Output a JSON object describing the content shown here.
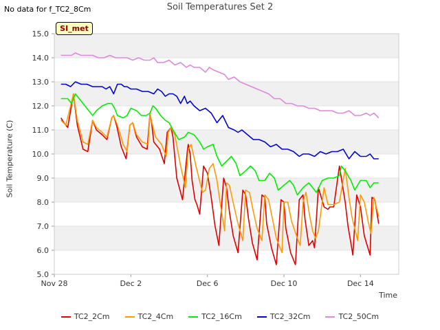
{
  "header": {
    "no_data_text": "No data for f_TC2_8Cm",
    "title": "Soil Temperatures Set 2",
    "badge": "SI_met"
  },
  "chart_data": {
    "type": "line",
    "title": "Soil Temperatures Set 2",
    "xlabel": "Time",
    "ylabel": "Soil Temperature (C)",
    "ylim": [
      5.0,
      15.0
    ],
    "xlim": [
      0,
      18
    ],
    "yticks": [
      "5.0",
      "6.0",
      "7.0",
      "8.0",
      "9.0",
      "10.0",
      "11.0",
      "12.0",
      "13.0",
      "14.0",
      "15.0"
    ],
    "xticks": [
      {
        "day": 0,
        "label": "Nov 28"
      },
      {
        "day": 4,
        "label": "Dec 2"
      },
      {
        "day": 8,
        "label": "Dec 6"
      },
      {
        "day": 12,
        "label": "Dec 10"
      },
      {
        "day": 16,
        "label": "Dec 14"
      }
    ],
    "grid": "alternating horizontal bands",
    "legend_position": "bottom",
    "series": [
      {
        "name": "TC2_2Cm",
        "color": "#dd0000",
        "width": 1.6,
        "x": [
          0.35,
          0.5,
          0.7,
          0.85,
          1.0,
          1.2,
          1.5,
          1.75,
          2.0,
          2.2,
          2.5,
          2.75,
          3.0,
          3.1,
          3.25,
          3.5,
          3.75,
          3.95,
          4.1,
          4.3,
          4.6,
          4.85,
          5.0,
          5.1,
          5.2,
          5.5,
          5.75,
          5.9,
          6.1,
          6.2,
          6.4,
          6.7,
          6.95,
          7.0,
          7.1,
          7.2,
          7.35,
          7.45,
          7.6,
          7.8,
          8.0,
          8.2,
          8.4,
          8.6,
          8.85,
          9.0,
          9.15,
          9.35,
          9.6,
          9.85,
          10.0,
          10.15,
          10.35,
          10.6,
          10.85,
          11.0,
          11.1,
          11.35,
          11.6,
          11.85,
          12.0,
          12.1,
          12.35,
          12.6,
          12.8,
          13.0,
          13.1,
          13.3,
          13.5,
          13.6,
          13.8,
          14.1,
          14.3,
          14.4,
          14.6,
          14.9,
          15.2,
          15.35,
          15.5,
          15.6,
          15.8,
          16.0,
          16.2,
          16.35,
          16.5,
          16.6,
          16.75,
          16.95
        ],
        "y": [
          11.5,
          11.3,
          11.1,
          11.8,
          12.5,
          11.2,
          10.2,
          10.1,
          11.4,
          11.0,
          10.8,
          10.6,
          11.5,
          11.6,
          11.2,
          10.3,
          9.8,
          11.2,
          11.3,
          10.7,
          10.3,
          10.2,
          11.7,
          11.2,
          10.5,
          10.2,
          9.6,
          10.9,
          11.1,
          10.7,
          9.0,
          8.1,
          10.1,
          10.4,
          10.0,
          8.9,
          8.1,
          7.9,
          7.5,
          9.5,
          9.2,
          8.2,
          7.0,
          6.2,
          9.0,
          8.6,
          7.6,
          6.6,
          5.9,
          8.5,
          8.3,
          7.3,
          6.3,
          5.6,
          8.3,
          8.2,
          7.1,
          6.1,
          5.4,
          8.1,
          8.0,
          6.9,
          5.9,
          5.4,
          8.1,
          8.3,
          7.3,
          6.2,
          6.4,
          6.1,
          8.6,
          7.8,
          7.7,
          7.8,
          7.8,
          9.5,
          8.0,
          7.0,
          6.3,
          5.8,
          8.3,
          7.8,
          6.6,
          6.2,
          5.8,
          8.2,
          8.1,
          7.1
        ]
      },
      {
        "name": "TC2_4Cm",
        "color": "#ff9900",
        "width": 1.6,
        "x": [
          0.35,
          0.6,
          0.85,
          1.0,
          1.2,
          1.5,
          1.75,
          2.0,
          2.2,
          2.5,
          2.75,
          3.0,
          3.1,
          3.3,
          3.6,
          3.8,
          3.95,
          4.1,
          4.3,
          4.6,
          4.9,
          5.0,
          5.1,
          5.3,
          5.6,
          5.85,
          5.95,
          6.1,
          6.3,
          6.6,
          6.85,
          7.0,
          7.15,
          7.4,
          7.65,
          7.75,
          7.9,
          8.1,
          8.3,
          8.5,
          8.7,
          8.9,
          9.0,
          9.15,
          9.4,
          9.6,
          9.85,
          10.0,
          10.2,
          10.4,
          10.6,
          10.85,
          11.0,
          11.2,
          11.4,
          11.6,
          11.9,
          12.0,
          12.2,
          12.4,
          12.7,
          12.85,
          13.0,
          13.15,
          13.35,
          13.5,
          13.65,
          13.8,
          14.1,
          14.3,
          14.4,
          14.6,
          14.9,
          15.2,
          15.4,
          15.55,
          15.7,
          15.85,
          16.0,
          16.2,
          16.4,
          16.55,
          16.7,
          16.95
        ],
        "y": [
          11.4,
          11.2,
          12.0,
          12.5,
          11.4,
          10.5,
          10.4,
          11.4,
          11.1,
          10.9,
          10.7,
          11.5,
          11.6,
          11.2,
          10.4,
          10.1,
          11.2,
          11.3,
          10.8,
          10.5,
          10.4,
          11.7,
          11.3,
          10.7,
          10.4,
          9.9,
          10.9,
          11.1,
          10.8,
          9.5,
          8.6,
          10.2,
          10.4,
          9.5,
          8.7,
          8.4,
          8.5,
          9.4,
          9.6,
          8.9,
          7.8,
          6.8,
          8.8,
          8.7,
          7.8,
          7.1,
          6.4,
          8.5,
          8.4,
          7.6,
          6.9,
          6.4,
          8.3,
          8.1,
          7.3,
          6.5,
          5.9,
          8.0,
          8.0,
          7.2,
          6.5,
          6.2,
          8.0,
          8.4,
          7.4,
          6.8,
          6.5,
          6.8,
          8.6,
          7.9,
          7.9,
          7.9,
          8.0,
          9.4,
          8.2,
          7.4,
          6.9,
          6.4,
          8.3,
          8.0,
          7.2,
          6.7,
          8.2,
          7.4
        ]
      },
      {
        "name": "TC2_16Cm",
        "color": "#00ee00",
        "width": 1.6,
        "x": [
          0.35,
          0.7,
          0.9,
          1.1,
          1.4,
          1.7,
          2.0,
          2.2,
          2.5,
          2.8,
          3.0,
          3.15,
          3.3,
          3.6,
          3.8,
          4.0,
          4.3,
          4.55,
          4.8,
          5.0,
          5.15,
          5.3,
          5.55,
          5.8,
          6.0,
          6.2,
          6.5,
          6.8,
          7.0,
          7.3,
          7.6,
          7.8,
          8.0,
          8.3,
          8.5,
          8.75,
          9.0,
          9.25,
          9.5,
          9.7,
          10.0,
          10.25,
          10.5,
          10.7,
          11.0,
          11.25,
          11.5,
          11.7,
          12.0,
          12.3,
          12.5,
          12.7,
          13.0,
          13.3,
          13.5,
          13.7,
          14.0,
          14.3,
          14.6,
          14.9,
          15.0,
          15.2,
          15.5,
          15.7,
          16.0,
          16.3,
          16.5,
          16.7,
          16.95
        ],
        "y": [
          12.3,
          12.3,
          12.1,
          12.5,
          12.2,
          11.9,
          11.6,
          11.8,
          12.0,
          12.1,
          12.1,
          11.9,
          11.6,
          11.5,
          11.6,
          11.9,
          11.8,
          11.6,
          11.6,
          11.7,
          12.0,
          11.9,
          11.6,
          11.4,
          11.3,
          11.0,
          10.6,
          10.7,
          10.9,
          10.8,
          10.5,
          10.2,
          10.3,
          10.4,
          9.9,
          9.5,
          9.7,
          9.9,
          9.6,
          9.1,
          9.3,
          9.5,
          9.3,
          8.9,
          8.9,
          9.2,
          9.0,
          8.5,
          8.7,
          8.9,
          8.7,
          8.3,
          8.6,
          8.8,
          8.6,
          8.4,
          8.9,
          9.0,
          9.0,
          9.1,
          9.5,
          9.3,
          8.9,
          8.5,
          8.9,
          8.9,
          8.6,
          8.8,
          8.8
        ]
      },
      {
        "name": "TC2_32Cm",
        "color": "#0000cc",
        "width": 1.6,
        "x": [
          0.35,
          0.6,
          0.85,
          1.1,
          1.4,
          1.7,
          2.0,
          2.3,
          2.5,
          2.7,
          2.9,
          3.1,
          3.3,
          3.5,
          3.65,
          3.8,
          4.0,
          4.3,
          4.6,
          4.9,
          5.2,
          5.4,
          5.6,
          5.8,
          6.0,
          6.2,
          6.4,
          6.6,
          6.8,
          6.95,
          7.1,
          7.3,
          7.6,
          7.9,
          8.2,
          8.5,
          8.8,
          9.1,
          9.4,
          9.6,
          9.8,
          10.1,
          10.4,
          10.7,
          11.0,
          11.3,
          11.6,
          11.9,
          12.2,
          12.5,
          12.8,
          13.0,
          13.3,
          13.6,
          13.9,
          14.2,
          14.5,
          14.8,
          15.1,
          15.4,
          15.7,
          16.0,
          16.3,
          16.5,
          16.7,
          16.95
        ],
        "y": [
          12.9,
          12.9,
          12.8,
          13.0,
          12.9,
          12.9,
          12.8,
          12.8,
          12.8,
          12.7,
          12.8,
          12.5,
          12.9,
          12.9,
          12.8,
          12.8,
          12.7,
          12.7,
          12.6,
          12.6,
          12.5,
          12.7,
          12.6,
          12.4,
          12.5,
          12.5,
          12.4,
          12.1,
          12.4,
          12.1,
          12.2,
          12.0,
          11.8,
          11.9,
          11.7,
          11.3,
          11.6,
          11.1,
          11.0,
          10.9,
          11.0,
          10.8,
          10.6,
          10.6,
          10.5,
          10.3,
          10.4,
          10.2,
          10.2,
          10.1,
          9.9,
          10.0,
          10.0,
          9.9,
          10.1,
          10.0,
          10.1,
          10.1,
          10.2,
          9.8,
          10.1,
          9.9,
          9.9,
          10.0,
          9.8,
          9.8
        ]
      },
      {
        "name": "TC2_50Cm",
        "color": "#dd88dd",
        "width": 1.6,
        "x": [
          0.35,
          0.6,
          0.9,
          1.1,
          1.4,
          1.7,
          2.0,
          2.3,
          2.6,
          2.9,
          3.2,
          3.5,
          3.8,
          4.1,
          4.4,
          4.7,
          5.0,
          5.2,
          5.4,
          5.7,
          6.0,
          6.3,
          6.6,
          6.9,
          7.1,
          7.3,
          7.6,
          7.9,
          8.1,
          8.3,
          8.6,
          8.9,
          9.1,
          9.4,
          9.7,
          10.0,
          10.3,
          10.6,
          10.9,
          11.2,
          11.5,
          11.8,
          12.1,
          12.4,
          12.7,
          13.0,
          13.3,
          13.6,
          13.9,
          14.2,
          14.5,
          14.8,
          15.1,
          15.4,
          15.7,
          16.0,
          16.3,
          16.5,
          16.7,
          16.95
        ],
        "y": [
          14.1,
          14.1,
          14.1,
          14.2,
          14.1,
          14.1,
          14.1,
          14.0,
          14.0,
          14.1,
          14.0,
          14.0,
          14.0,
          13.9,
          14.0,
          13.9,
          13.9,
          14.0,
          13.8,
          13.8,
          13.9,
          13.7,
          13.8,
          13.6,
          13.7,
          13.6,
          13.6,
          13.4,
          13.6,
          13.5,
          13.4,
          13.3,
          13.1,
          13.2,
          13.0,
          12.9,
          12.8,
          12.7,
          12.6,
          12.5,
          12.3,
          12.3,
          12.1,
          12.1,
          12.0,
          12.0,
          11.9,
          11.9,
          11.8,
          11.8,
          11.8,
          11.7,
          11.7,
          11.8,
          11.6,
          11.6,
          11.7,
          11.6,
          11.7,
          11.5
        ]
      }
    ]
  }
}
